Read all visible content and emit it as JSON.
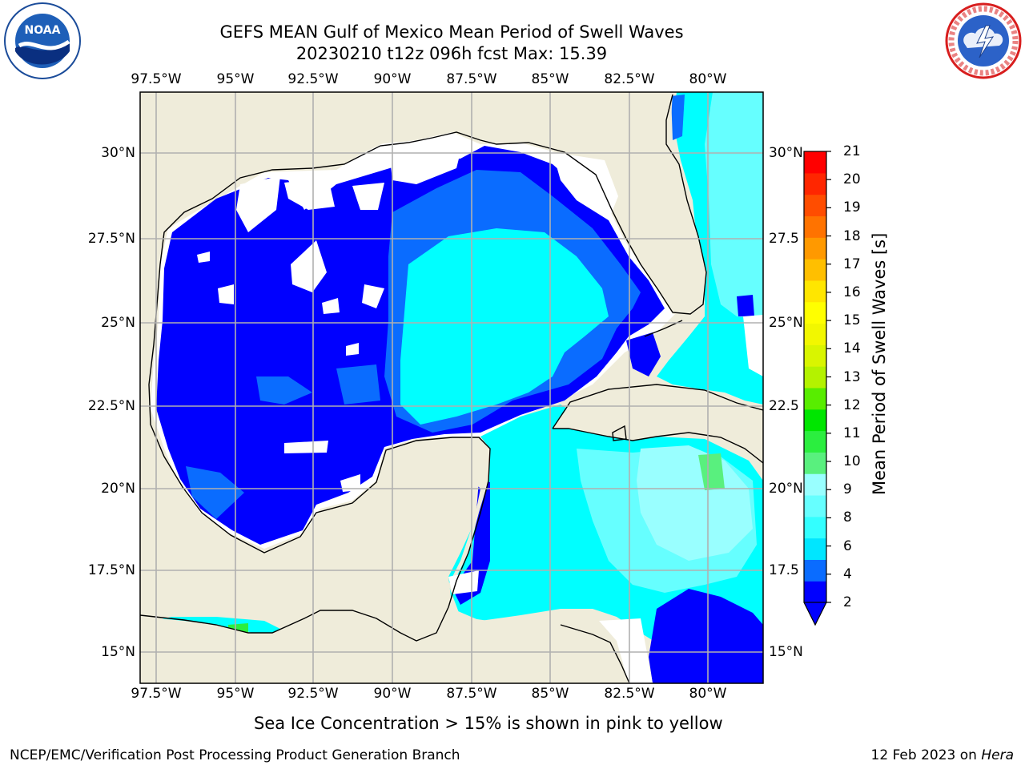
{
  "header": {
    "title_line1": "GEFS MEAN Gulf of Mexico Mean Period of Swell Waves",
    "title_line2": "20230210 t12z 096h fcst   Max: 15.39"
  },
  "logos": {
    "left": {
      "icon": "noaa-logo",
      "text": "NOAA",
      "ring_text": "NATIONAL OCEANIC AND ATMOSPHERIC ADMINISTRATION · U.S. DEPARTMENT OF COMMERCE"
    },
    "right": {
      "icon": "nws-logo",
      "ring_text": "NATIONAL WEATHER SERVICE"
    }
  },
  "map": {
    "region": "Gulf of Mexico",
    "lon_ticks": [
      "97.5°W",
      "95°W",
      "92.5°W",
      "90°W",
      "87.5°W",
      "85°W",
      "82.5°W",
      "80°W"
    ],
    "lat_ticks_left": [
      "30°N",
      "27.5°N",
      "25°N",
      "22.5°N",
      "20°N",
      "17.5°N",
      "15°N"
    ],
    "lat_ticks_right": [
      "30°N",
      "27.5",
      "25°N",
      "22.5",
      "20°N",
      "17.5",
      "15°N"
    ],
    "colors": {
      "land": "#efecda",
      "mask": "#ffffff",
      "grid": "#b0b0b0",
      "coast": "#000000"
    }
  },
  "colorbar": {
    "label": "Mean Period of Swell Waves [s]",
    "ticks": [
      "21",
      "20",
      "19",
      "18",
      "17",
      "16",
      "15",
      "14",
      "13",
      "12",
      "11",
      "10",
      "9",
      "8",
      "6",
      "4",
      "2"
    ],
    "colors": [
      "#0000ff",
      "#0a6cff",
      "#00e6ff",
      "#33ffff",
      "#66ffff",
      "#99ffff",
      "#59f07e",
      "#2bee3f",
      "#00e600",
      "#58ed00",
      "#b4f200",
      "#d9f500",
      "#f2f700",
      "#ffff00",
      "#ffe600",
      "#ffbf00",
      "#ff9900",
      "#ff7300",
      "#ff4d00",
      "#ff2600",
      "#ff0000"
    ]
  },
  "notes": {
    "sea_ice": "Sea Ice Concentration > 15% is shown in pink to yellow"
  },
  "footer": {
    "left": "NCEP/EMC/Verification Post Processing Product Generation Branch",
    "right_prefix": "12 Feb 2023 on ",
    "right_host": "Hera"
  }
}
